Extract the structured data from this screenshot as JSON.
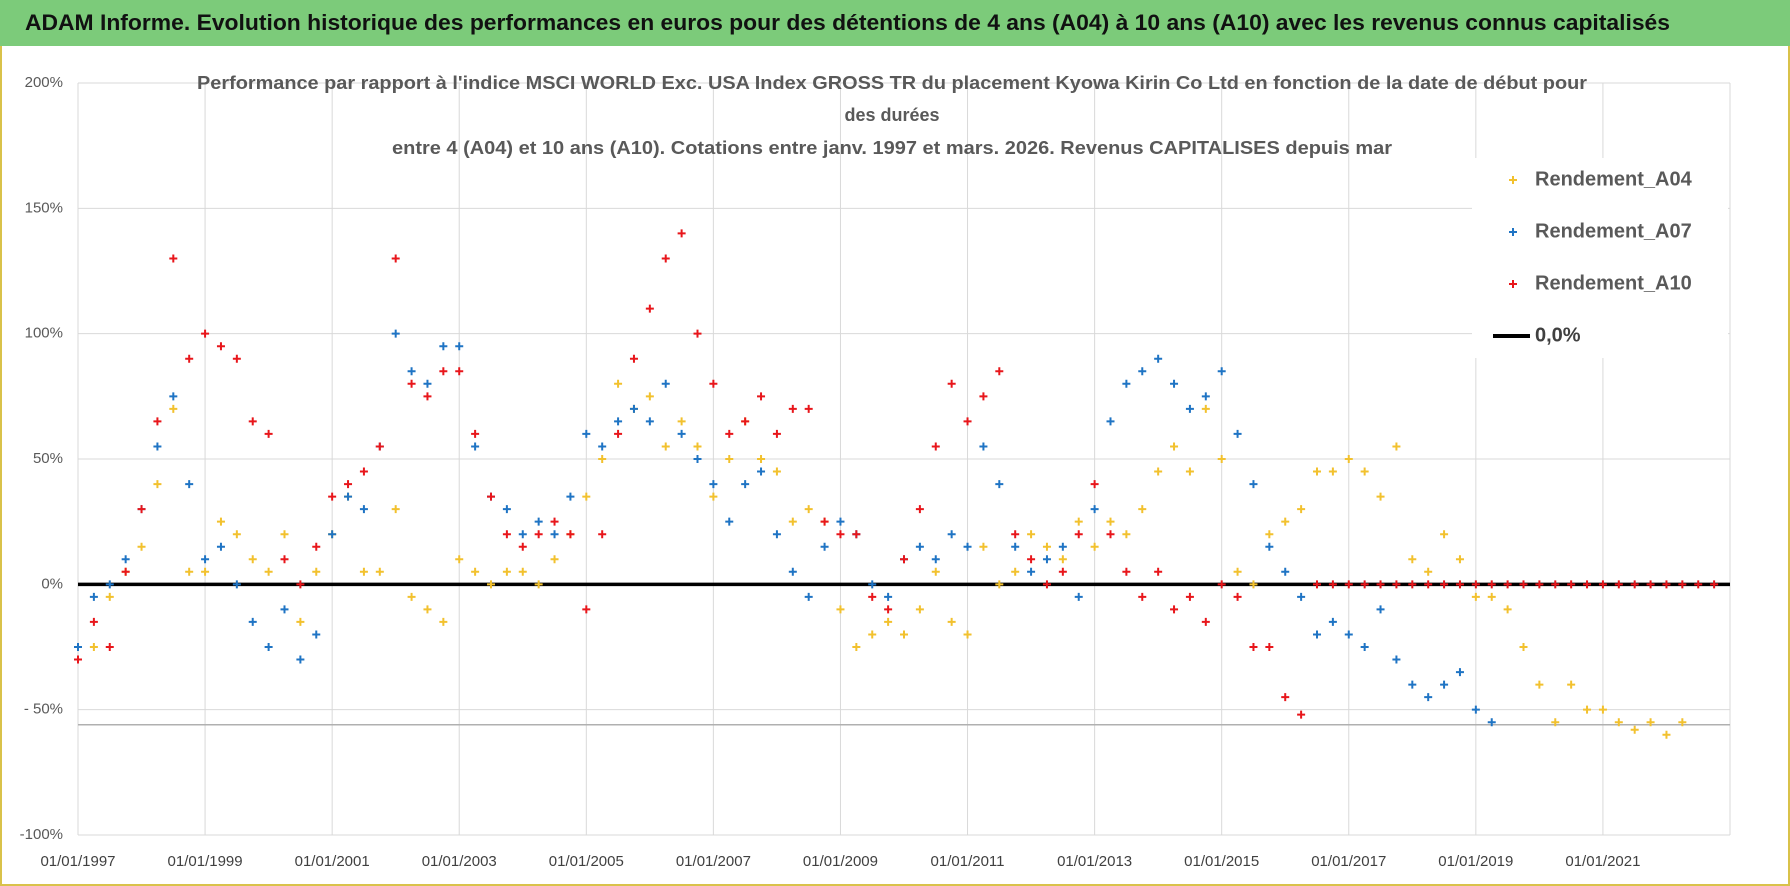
{
  "chart_data": {
    "type": "scatter",
    "header": "ADAM Informe. Evolution historique des performances en euros pour des détentions de 4 ans (A04) à 10 ans (A10) avec les revenus connus capitalisés",
    "subtitle": [
      "Performance par rapport à l'indice MSCI WORLD Exc. USA Index GROSS TR  du placement Kyowa Kirin Co Ltd en fonction de la date de début pour",
      "des durées",
      "entre 4 (A04) et 10 ans (A10). Cotations entre janv. 1997 et mars. 2026. Revenus CAPITALISES depuis mar"
    ],
    "x": [
      "01/01/1997",
      "01/04/1997",
      "01/07/1997",
      "01/10/1997",
      "01/01/1998",
      "01/04/1998",
      "01/07/1998",
      "01/10/1998",
      "01/01/1999",
      "01/04/1999",
      "01/07/1999",
      "01/10/1999",
      "01/01/2000",
      "01/04/2000",
      "01/07/2000",
      "01/10/2000",
      "01/01/2001",
      "01/04/2001",
      "01/07/2001",
      "01/10/2001",
      "01/01/2002",
      "01/04/2002",
      "01/07/2002",
      "01/10/2002",
      "01/01/2003",
      "01/04/2003",
      "01/07/2003",
      "01/10/2003",
      "01/01/2004",
      "01/04/2004",
      "01/07/2004",
      "01/10/2004",
      "01/01/2005",
      "01/04/2005",
      "01/07/2005",
      "01/10/2005",
      "01/01/2006",
      "01/04/2006",
      "01/07/2006",
      "01/10/2006",
      "01/01/2007",
      "01/04/2007",
      "01/07/2007",
      "01/10/2007",
      "01/01/2008",
      "01/04/2008",
      "01/07/2008",
      "01/10/2008",
      "01/01/2009",
      "01/04/2009",
      "01/07/2009",
      "01/10/2009",
      "01/01/2010",
      "01/04/2010",
      "01/07/2010",
      "01/10/2010",
      "01/01/2011",
      "01/04/2011",
      "01/07/2011",
      "01/10/2011",
      "01/01/2012",
      "01/04/2012",
      "01/07/2012",
      "01/10/2012",
      "01/01/2013",
      "01/04/2013",
      "01/07/2013",
      "01/10/2013",
      "01/01/2014",
      "01/04/2014",
      "01/07/2014",
      "01/10/2014",
      "01/01/2015",
      "01/04/2015",
      "01/07/2015",
      "01/10/2015",
      "01/01/2016",
      "01/04/2016",
      "01/07/2016",
      "01/10/2016",
      "01/01/2017",
      "01/04/2017",
      "01/07/2017",
      "01/10/2017",
      "01/01/2018",
      "01/04/2018",
      "01/07/2018",
      "01/10/2018",
      "01/01/2019",
      "01/04/2019",
      "01/07/2019",
      "01/10/2019",
      "01/01/2020",
      "01/04/2020",
      "01/07/2020",
      "01/10/2020",
      "01/01/2021",
      "01/04/2021",
      "01/07/2021",
      "01/10/2021",
      "01/01/2022",
      "01/04/2022",
      "01/07/2022",
      "01/10/2022"
    ],
    "series": [
      {
        "name": "Rendement_A04",
        "color": "#f2c12e",
        "values": [
          -30,
          -25,
          -5,
          5,
          15,
          40,
          70,
          5,
          5,
          25,
          20,
          10,
          5,
          20,
          -15,
          5,
          20,
          35,
          5,
          5,
          30,
          -5,
          -10,
          -15,
          10,
          5,
          0,
          5,
          5,
          0,
          10,
          20,
          35,
          50,
          80,
          70,
          75,
          55,
          65,
          55,
          35,
          50,
          65,
          50,
          45,
          25,
          30,
          25,
          -10,
          -25,
          -20,
          -15,
          -20,
          -10,
          5,
          -15,
          -20,
          15,
          0,
          5,
          20,
          15,
          10,
          25,
          15,
          25,
          20,
          30,
          45,
          55,
          45,
          70,
          50,
          5,
          0,
          20,
          25,
          30,
          45,
          45,
          50,
          45,
          35,
          55,
          10,
          5,
          20,
          10,
          -5,
          -5,
          -10,
          -25,
          -40,
          -55,
          -40,
          -50,
          -50,
          -55,
          -58,
          -55,
          -60,
          -55,
          null,
          null
        ]
      },
      {
        "name": "Rendement_A07",
        "color": "#1f74c4",
        "values": [
          -25,
          -5,
          0,
          10,
          30,
          55,
          75,
          40,
          10,
          15,
          0,
          -15,
          -25,
          -10,
          -30,
          -20,
          20,
          35,
          30,
          55,
          100,
          85,
          80,
          95,
          95,
          55,
          35,
          30,
          20,
          25,
          20,
          35,
          60,
          55,
          65,
          70,
          65,
          80,
          60,
          50,
          40,
          25,
          40,
          45,
          20,
          5,
          -5,
          15,
          25,
          20,
          0,
          -5,
          10,
          15,
          10,
          20,
          15,
          55,
          40,
          15,
          5,
          10,
          15,
          -5,
          30,
          65,
          80,
          85,
          90,
          80,
          70,
          75,
          85,
          60,
          40,
          15,
          5,
          -5,
          -20,
          -15,
          -20,
          -25,
          -10,
          -30,
          -40,
          -45,
          -40,
          -35,
          -50,
          -55,
          null,
          null,
          null,
          null,
          null,
          null,
          null,
          null,
          null,
          null,
          null,
          null,
          null,
          null
        ]
      },
      {
        "name": "Rendement_A10",
        "color": "#e8161b",
        "values": [
          -30,
          -15,
          -25,
          5,
          30,
          65,
          130,
          90,
          100,
          95,
          90,
          65,
          60,
          10,
          0,
          15,
          35,
          40,
          45,
          55,
          130,
          80,
          75,
          85,
          85,
          60,
          35,
          20,
          15,
          20,
          25,
          20,
          -10,
          20,
          60,
          90,
          110,
          130,
          140,
          100,
          80,
          60,
          65,
          75,
          60,
          70,
          70,
          25,
          20,
          20,
          -5,
          -10,
          10,
          30,
          55,
          80,
          65,
          75,
          85,
          20,
          10,
          0,
          5,
          20,
          40,
          20,
          5,
          -5,
          5,
          -10,
          -5,
          -15,
          0,
          -5,
          -25,
          -25,
          -45,
          -52,
          0,
          0,
          0,
          0,
          0,
          0,
          0,
          0,
          0,
          0,
          0,
          0,
          0,
          0,
          0,
          0,
          0,
          0,
          0,
          0,
          0,
          0,
          0,
          0,
          0,
          0
        ]
      }
    ],
    "reference_lines": [
      {
        "name": "0,0%",
        "value": 0,
        "color": "#000000"
      },
      {
        "value": -56,
        "color": "#b0b0b0"
      }
    ],
    "xlim": [
      "01/01/1997",
      "01/01/2023"
    ],
    "xticks": [
      "01/01/1997",
      "01/01/1999",
      "01/01/2001",
      "01/01/2003",
      "01/01/2005",
      "01/01/2007",
      "01/01/2009",
      "01/01/2011",
      "01/01/2013",
      "01/01/2015",
      "01/01/2017",
      "01/01/2019",
      "01/01/2021"
    ],
    "ylim": [
      -100,
      200
    ],
    "yticks": [
      {
        "value": -100,
        "label": "-100%"
      },
      {
        "value": -50,
        "label": "- 50%"
      },
      {
        "value": 0,
        "label": "0%"
      },
      {
        "value": 50,
        "label": "50%"
      },
      {
        "value": 100,
        "label": "100%"
      },
      {
        "value": 150,
        "label": "150%"
      },
      {
        "value": 200,
        "label": "200%"
      }
    ],
    "grid": true,
    "legend": "upper right"
  }
}
